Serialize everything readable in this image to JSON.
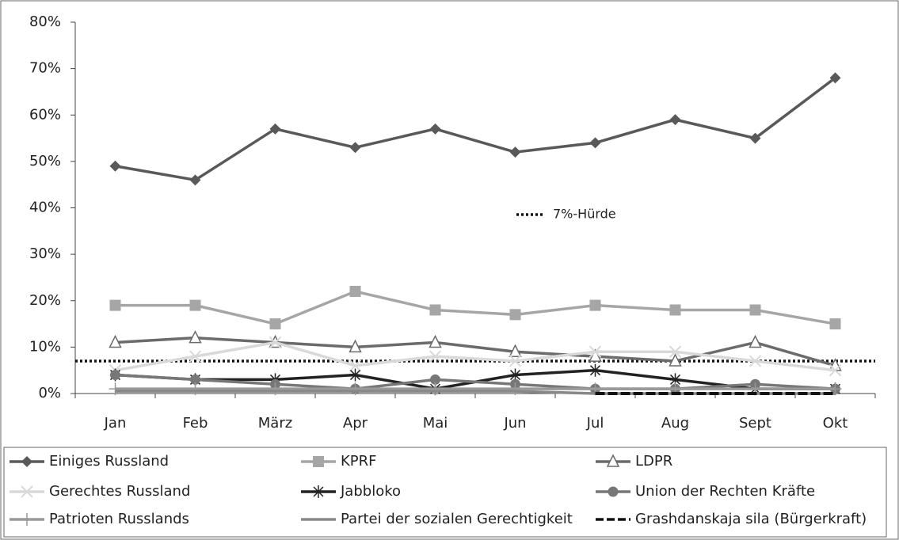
{
  "chart_data": {
    "type": "line",
    "categories": [
      "Jan",
      "Feb",
      "März",
      "Apr",
      "Mai",
      "Jun",
      "Jul",
      "Aug",
      "Sept",
      "Okt"
    ],
    "ylim": [
      0,
      80
    ],
    "yticks": [
      {
        "value": 0,
        "label": "0%"
      },
      {
        "value": 10,
        "label": "10%"
      },
      {
        "value": 20,
        "label": "20%"
      },
      {
        "value": 30,
        "label": "30%"
      },
      {
        "value": 40,
        "label": "40%"
      },
      {
        "value": 50,
        "label": "50%"
      },
      {
        "value": 60,
        "label": "60%"
      },
      {
        "value": 70,
        "label": "70%"
      },
      {
        "value": 80,
        "label": "80%"
      }
    ],
    "threshold": {
      "value": 7,
      "label": "7%-Hürde"
    },
    "series": [
      {
        "name": "Einiges Russland",
        "color": "#595959",
        "marker": "diamond",
        "values": [
          49,
          46,
          57,
          53,
          57,
          52,
          54,
          59,
          55,
          68
        ]
      },
      {
        "name": "KPRF",
        "color": "#a6a6a6",
        "marker": "square",
        "values": [
          19,
          19,
          15,
          22,
          18,
          17,
          19,
          18,
          18,
          15
        ]
      },
      {
        "name": "LDPR",
        "color": "#6b6b6b",
        "marker": "triangle",
        "values": [
          11,
          12,
          11,
          10,
          11,
          9,
          8,
          7,
          11,
          6
        ]
      },
      {
        "name": "Gerechtes Russland",
        "color": "#d9d9d9",
        "marker": "x",
        "values": [
          5,
          8,
          11,
          6,
          8,
          7,
          9,
          9,
          7,
          5
        ]
      },
      {
        "name": "Jabbloko",
        "color": "#222222",
        "marker": "asterisk",
        "values": [
          4,
          3,
          3,
          4,
          1,
          4,
          5,
          3,
          1,
          1
        ]
      },
      {
        "name": "Union der Rechten Kräfte",
        "color": "#777777",
        "marker": "circle",
        "values": [
          4,
          3,
          2,
          1,
          3,
          2,
          1,
          1,
          2,
          1
        ]
      },
      {
        "name": "Patrioten Russlands",
        "color": "#999999",
        "marker": "plus",
        "values": [
          1,
          1,
          1,
          1,
          1,
          1,
          1,
          1,
          1,
          1
        ]
      },
      {
        "name": "Partei der sozialen Gerechtigkeit",
        "color": "#888888",
        "marker": "none",
        "values": [
          0.5,
          0.5,
          0.5,
          0.5,
          0.5,
          0.5,
          0,
          0,
          0,
          0
        ]
      },
      {
        "name": "Grashdanskaja sila (Bürgerkraft)",
        "color": "#111111",
        "marker": "none",
        "dash": true,
        "values": [
          null,
          null,
          null,
          null,
          null,
          null,
          0,
          0,
          0,
          0
        ]
      }
    ]
  }
}
